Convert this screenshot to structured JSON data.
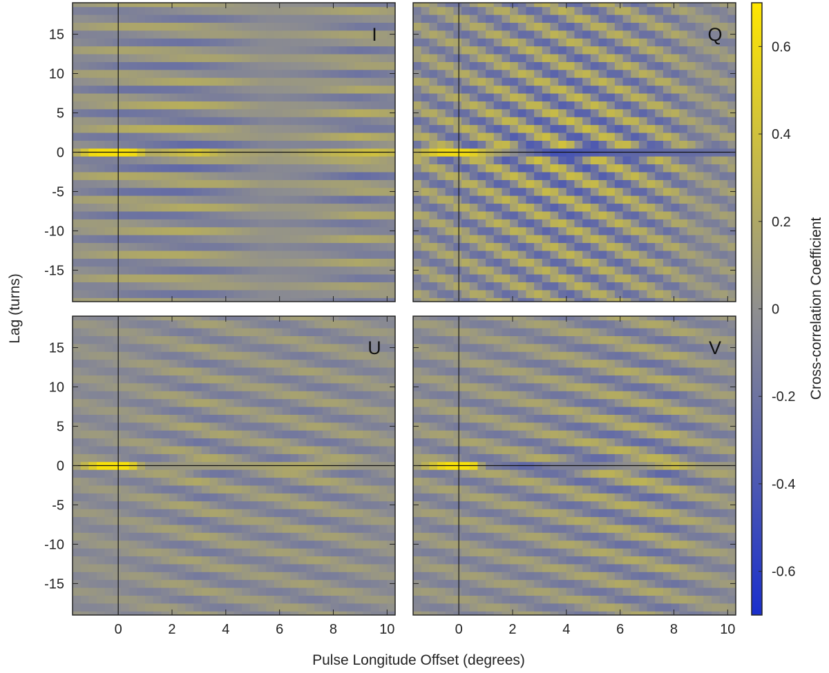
{
  "chart_data": {
    "type": "heatmap",
    "xlabel": "Pulse Longitude Offset (degrees)",
    "ylabel": "Lag (turns)",
    "colorbar_label": "Cross-correlation Coefficient",
    "xlim": [
      -1.7,
      10.3
    ],
    "ylim": [
      -19,
      19
    ],
    "xticks": [
      0,
      2,
      4,
      6,
      8,
      10
    ],
    "xtick_labels": [
      "0",
      "2",
      "4",
      "6",
      "8",
      "10"
    ],
    "yticks": [
      -15,
      -10,
      -5,
      0,
      5,
      10,
      15
    ],
    "ytick_labels": [
      "-15",
      "-10",
      "-5",
      "0",
      "5",
      "10",
      "15"
    ],
    "colorbar_range": [
      -0.7,
      0.7
    ],
    "colorbar_ticks": [
      0.6,
      0.4,
      0.2,
      0,
      -0.2,
      -0.4,
      -0.6
    ],
    "colorbar_tick_labels": [
      "0.6",
      "0.4",
      "0.2",
      "0",
      "-0.2",
      "-0.4",
      "-0.6"
    ],
    "colormap": {
      "negative": "#1a2fcc",
      "zero": "#8f8f8f",
      "positive": "#ffe600"
    },
    "grid": false,
    "x_bin_width": 0.3,
    "lag_step": 1,
    "reference_lines": {
      "x": 0,
      "y": 0
    },
    "panels": [
      {
        "label": "I",
        "peak": {
          "x_range": [
            -0.9,
            0.5
          ],
          "value": 0.65
        },
        "stripe_period": 3.2,
        "stripe_slope": 0.15,
        "amplitude_profile": [
          [
            -1.7,
            0.15
          ],
          [
            0,
            0.25
          ],
          [
            2.5,
            0.3
          ],
          [
            4,
            0.22
          ],
          [
            5.5,
            0.08
          ],
          [
            7,
            0.12
          ],
          [
            9,
            0.28
          ],
          [
            10.3,
            0.2
          ]
        ],
        "zero_lag_row": [
          [
            -1.7,
            0.15
          ],
          [
            -0.9,
            0.65
          ],
          [
            0.5,
            0.65
          ],
          [
            1.2,
            0.2
          ],
          [
            3,
            0.45
          ],
          [
            4,
            0.2
          ],
          [
            6,
            0.1
          ],
          [
            8,
            0.3
          ],
          [
            9.5,
            0.4
          ],
          [
            10.3,
            0.3
          ]
        ]
      },
      {
        "label": "Q",
        "peak": {
          "x_range": [
            -0.6,
            0.4
          ],
          "value": 0.6
        },
        "stripe_period": 3.4,
        "stripe_slope": 1.5,
        "amplitude_profile": [
          [
            -1.7,
            0.25
          ],
          [
            0,
            0.3
          ],
          [
            2,
            0.38
          ],
          [
            4,
            0.42
          ],
          [
            6,
            0.38
          ],
          [
            8,
            0.3
          ],
          [
            9,
            0.15
          ],
          [
            10.3,
            0.2
          ]
        ],
        "zero_lag_row": [
          [
            -1.7,
            0.2
          ],
          [
            -0.6,
            0.6
          ],
          [
            0.4,
            0.6
          ],
          [
            1,
            0.3
          ],
          [
            3.5,
            -0.45
          ],
          [
            6,
            -0.3
          ],
          [
            8.5,
            -0.25
          ],
          [
            10.3,
            -0.2
          ]
        ]
      },
      {
        "label": "U",
        "peak": {
          "x_range": [
            -0.7,
            0.4
          ],
          "value": 0.65
        },
        "stripe_period": 3.4,
        "stripe_slope": 0.7,
        "amplitude_profile": [
          [
            -1.7,
            0.1
          ],
          [
            0,
            0.1
          ],
          [
            2,
            0.18
          ],
          [
            3,
            0.22
          ],
          [
            5,
            0.16
          ],
          [
            7,
            0.2
          ],
          [
            9,
            0.16
          ],
          [
            10.3,
            0.1
          ]
        ],
        "zero_lag_row": [
          [
            -1.7,
            0.05
          ],
          [
            -0.7,
            0.65
          ],
          [
            0.4,
            0.65
          ],
          [
            1,
            0.05
          ],
          [
            4,
            0.1
          ],
          [
            7,
            0.2
          ],
          [
            9,
            0.05
          ],
          [
            10.3,
            0.05
          ]
        ]
      },
      {
        "label": "V",
        "peak": {
          "x_range": [
            -0.5,
            0.5
          ],
          "value": 0.65
        },
        "stripe_period": 3.4,
        "stripe_slope": 0.8,
        "amplitude_profile": [
          [
            -1.7,
            0.15
          ],
          [
            0,
            0.18
          ],
          [
            2,
            0.2
          ],
          [
            4,
            0.25
          ],
          [
            6,
            0.3
          ],
          [
            8,
            0.3
          ],
          [
            9,
            0.2
          ],
          [
            10.3,
            0.15
          ]
        ],
        "zero_lag_row": [
          [
            -1.7,
            0.05
          ],
          [
            -0.5,
            0.65
          ],
          [
            0.5,
            0.65
          ],
          [
            1,
            -0.1
          ],
          [
            2.5,
            -0.3
          ],
          [
            3.5,
            -0.1
          ],
          [
            5,
            -0.1
          ],
          [
            7,
            0.05
          ],
          [
            8,
            0.35
          ],
          [
            9,
            0.1
          ],
          [
            10.3,
            0.05
          ]
        ]
      }
    ]
  }
}
